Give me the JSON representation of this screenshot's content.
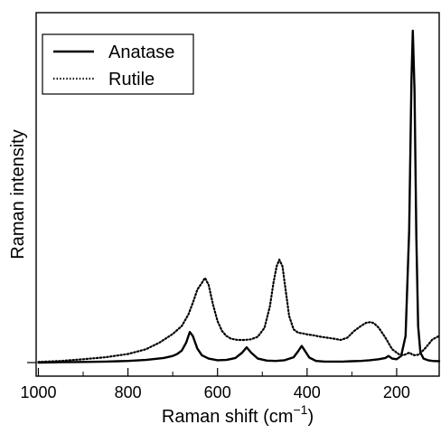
{
  "chart_data": {
    "type": "line",
    "title": "",
    "xlabel": "Raman shift (cm",
    "xlabel_sup": "−1",
    "xlabel_close": ")",
    "ylabel": "Raman intensity",
    "x_reversed": true,
    "xlim": [
      1005,
      105
    ],
    "ylim": [
      0,
      1.08
    ],
    "y_ticks_labeled": false,
    "x_ticks": [
      1000,
      800,
      600,
      400,
      200
    ],
    "x_tick_labels": [
      "1000",
      "800",
      "600",
      "400",
      "200"
    ],
    "grid": false,
    "legend": {
      "placement": "top-left",
      "entries": [
        "Anatase",
        "Rutile"
      ]
    },
    "colors": {
      "Anatase": "#000000",
      "Rutile": "#000000"
    },
    "series": [
      {
        "name": "Anatase",
        "style": "solid",
        "x": [
          1000,
          950,
          900,
          850,
          800,
          760,
          720,
          700,
          690,
          680,
          670,
          662,
          655,
          645,
          635,
          620,
          600,
          580,
          560,
          545,
          535,
          525,
          510,
          490,
          470,
          450,
          430,
          420,
          412,
          405,
          395,
          380,
          360,
          340,
          320,
          300,
          280,
          260,
          240,
          225,
          218,
          210,
          200,
          190,
          180,
          172,
          167,
          164,
          160,
          156,
          152,
          147,
          140,
          130,
          120,
          105
        ],
        "y": [
          0.0,
          0.001,
          0.002,
          0.003,
          0.005,
          0.008,
          0.014,
          0.02,
          0.026,
          0.036,
          0.06,
          0.092,
          0.08,
          0.042,
          0.022,
          0.012,
          0.007,
          0.008,
          0.014,
          0.03,
          0.046,
          0.03,
          0.012,
          0.006,
          0.005,
          0.007,
          0.016,
          0.034,
          0.05,
          0.036,
          0.015,
          0.005,
          0.003,
          0.003,
          0.003,
          0.004,
          0.005,
          0.007,
          0.01,
          0.014,
          0.02,
          0.012,
          0.01,
          0.02,
          0.08,
          0.4,
          0.85,
          1.0,
          0.82,
          0.38,
          0.11,
          0.03,
          0.012,
          0.007,
          0.005,
          0.004
        ]
      },
      {
        "name": "Rutile",
        "style": "dotted",
        "x": [
          1000,
          950,
          900,
          850,
          800,
          760,
          730,
          700,
          680,
          665,
          655,
          645,
          635,
          628,
          620,
          610,
          600,
          590,
          580,
          570,
          555,
          540,
          525,
          510,
          495,
          483,
          475,
          468,
          462,
          455,
          447,
          440,
          430,
          420,
          410,
          400,
          385,
          370,
          355,
          340,
          325,
          310,
          295,
          280,
          268,
          258,
          250,
          240,
          225,
          210,
          195,
          185,
          178,
          172,
          166,
          160,
          150,
          135,
          120,
          105
        ],
        "y": [
          0.002,
          0.005,
          0.01,
          0.016,
          0.026,
          0.04,
          0.06,
          0.086,
          0.11,
          0.145,
          0.18,
          0.22,
          0.24,
          0.255,
          0.235,
          0.175,
          0.125,
          0.095,
          0.08,
          0.072,
          0.068,
          0.068,
          0.07,
          0.078,
          0.105,
          0.17,
          0.24,
          0.29,
          0.31,
          0.29,
          0.21,
          0.14,
          0.1,
          0.09,
          0.088,
          0.085,
          0.082,
          0.078,
          0.075,
          0.072,
          0.068,
          0.075,
          0.095,
          0.11,
          0.12,
          0.122,
          0.118,
          0.105,
          0.075,
          0.04,
          0.025,
          0.022,
          0.026,
          0.03,
          0.025,
          0.022,
          0.024,
          0.045,
          0.07,
          0.08
        ]
      }
    ]
  }
}
